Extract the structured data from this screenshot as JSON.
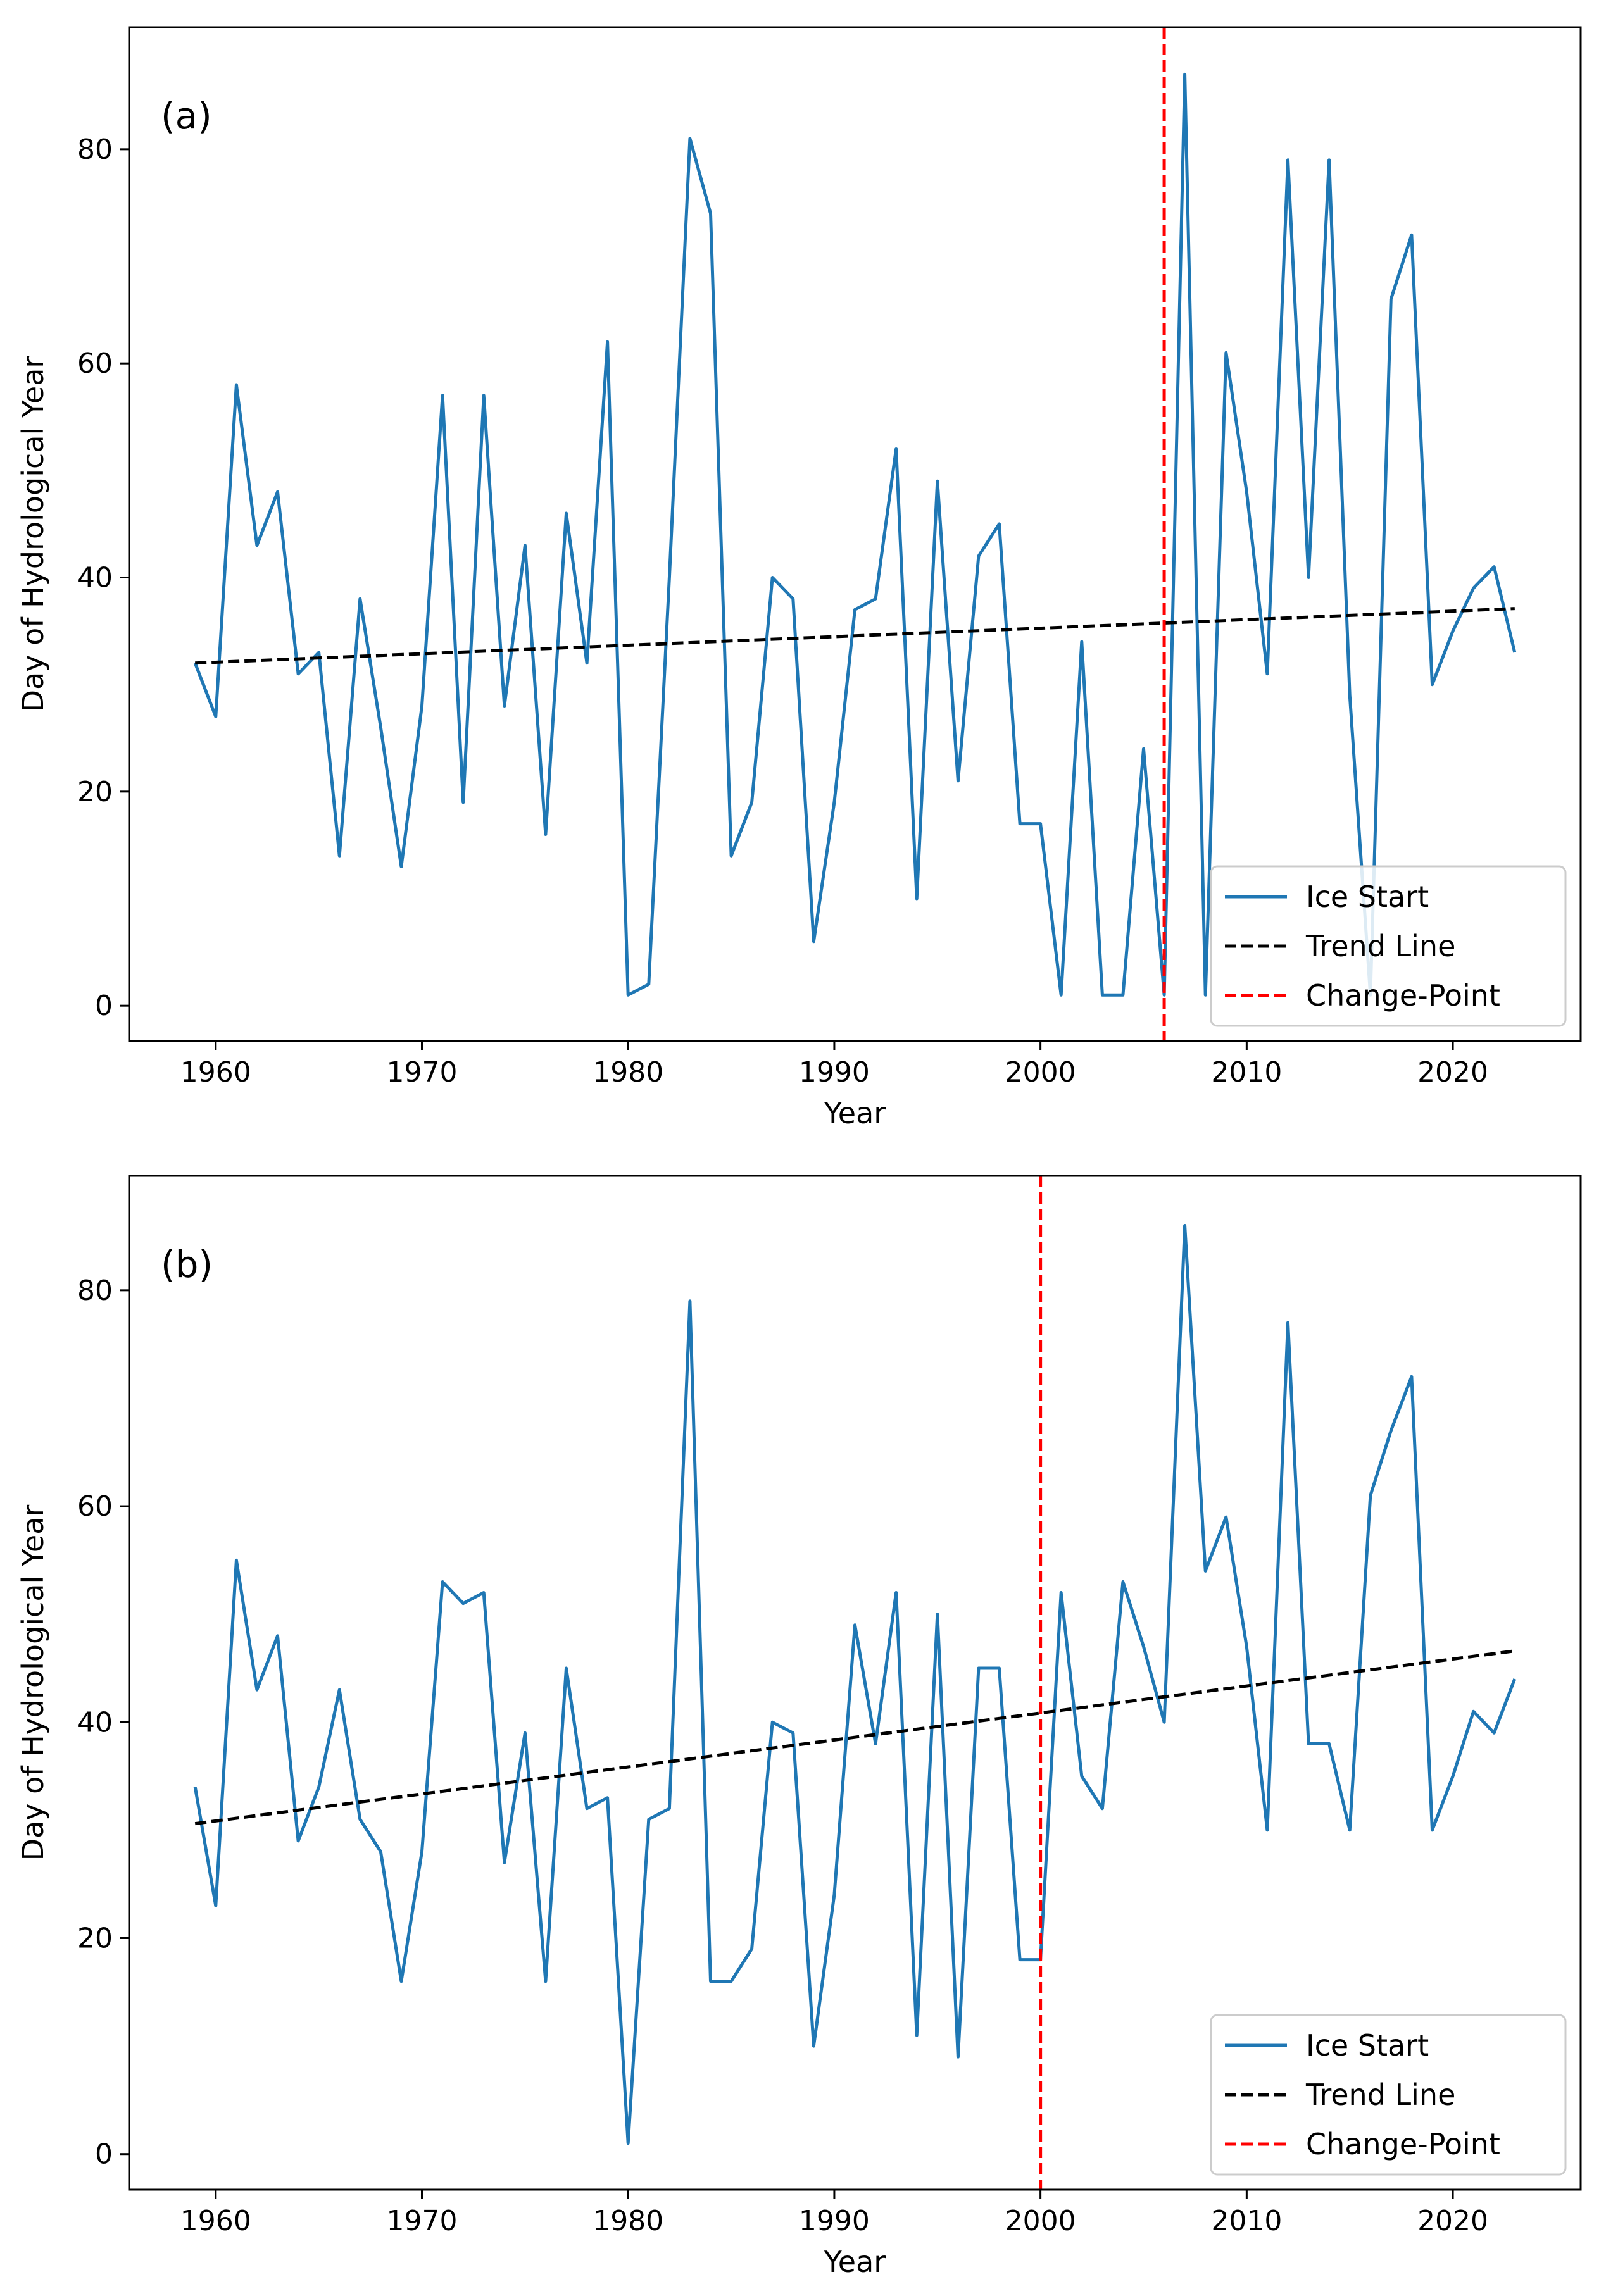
{
  "chart_data": [
    {
      "type": "line",
      "panel_label": "(a)",
      "xlabel": "Year",
      "ylabel": "Day of Hydrological Year",
      "xlim": [
        1955.8,
        2026.2
      ],
      "ylim": [
        -3.3,
        91.4
      ],
      "xticks": [
        1960,
        1970,
        1980,
        1990,
        2000,
        2010,
        2020
      ],
      "yticks": [
        0,
        20,
        40,
        60,
        80
      ],
      "x": [
        1959,
        1960,
        1961,
        1962,
        1963,
        1964,
        1965,
        1966,
        1967,
        1968,
        1969,
        1970,
        1971,
        1972,
        1973,
        1974,
        1975,
        1976,
        1977,
        1978,
        1979,
        1980,
        1981,
        1982,
        1983,
        1984,
        1985,
        1986,
        1987,
        1988,
        1989,
        1990,
        1991,
        1992,
        1993,
        1994,
        1995,
        1996,
        1997,
        1998,
        1999,
        2000,
        2001,
        2002,
        2003,
        2004,
        2005,
        2006,
        2007,
        2008,
        2009,
        2010,
        2011,
        2012,
        2013,
        2014,
        2015,
        2016,
        2017,
        2018,
        2019,
        2020,
        2021,
        2022,
        2023
      ],
      "series": [
        {
          "name": "Ice Start",
          "color": "#1f77b4",
          "style": "solid",
          "values": [
            32,
            27,
            58,
            43,
            48,
            31,
            33,
            14,
            38,
            26,
            13,
            28,
            57,
            19,
            57,
            28,
            43,
            16,
            46,
            32,
            62,
            1,
            2,
            40,
            81,
            74,
            14,
            19,
            40,
            38,
            6,
            19,
            37,
            38,
            52,
            10,
            49,
            21,
            42,
            45,
            17,
            17,
            1,
            34,
            1,
            1,
            24,
            1,
            87,
            1,
            61,
            48,
            31,
            79,
            40,
            79,
            29,
            1,
            66,
            72,
            30,
            35,
            39,
            41,
            33
          ]
        },
        {
          "name": "Trend Line",
          "color": "#000000",
          "style": "dashed",
          "x": [
            1959,
            2023
          ],
          "values": [
            32.0,
            37.1
          ]
        }
      ],
      "change_point": {
        "name": "Change-Point",
        "year": 2006,
        "color": "#ff0000",
        "style": "dashed"
      },
      "legend_position": "lower-right"
    },
    {
      "type": "line",
      "panel_label": "(b)",
      "xlabel": "Year",
      "ylabel": "Day of Hydrological Year",
      "xlim": [
        1955.8,
        2026.2
      ],
      "ylim": [
        -3.3,
        90.6
      ],
      "xticks": [
        1960,
        1970,
        1980,
        1990,
        2000,
        2010,
        2020
      ],
      "yticks": [
        0,
        20,
        40,
        60,
        80
      ],
      "x": [
        1959,
        1960,
        1961,
        1962,
        1963,
        1964,
        1965,
        1966,
        1967,
        1968,
        1969,
        1970,
        1971,
        1972,
        1973,
        1974,
        1975,
        1976,
        1977,
        1978,
        1979,
        1980,
        1981,
        1982,
        1983,
        1984,
        1985,
        1986,
        1987,
        1988,
        1989,
        1990,
        1991,
        1992,
        1993,
        1994,
        1995,
        1996,
        1997,
        1998,
        1999,
        2000,
        2001,
        2002,
        2003,
        2004,
        2005,
        2006,
        2007,
        2008,
        2009,
        2010,
        2011,
        2012,
        2013,
        2014,
        2015,
        2016,
        2017,
        2018,
        2019,
        2020,
        2021,
        2022,
        2023
      ],
      "series": [
        {
          "name": "Ice Start",
          "color": "#1f77b4",
          "style": "solid",
          "values": [
            34,
            23,
            55,
            43,
            48,
            29,
            34,
            43,
            31,
            28,
            16,
            28,
            53,
            51,
            52,
            27,
            39,
            16,
            45,
            32,
            33,
            1,
            31,
            32,
            79,
            16,
            16,
            19,
            40,
            39,
            10,
            24,
            49,
            38,
            52,
            11,
            50,
            9,
            45,
            45,
            18,
            18,
            52,
            35,
            32,
            53,
            47,
            40,
            86,
            54,
            59,
            47,
            30,
            77,
            38,
            38,
            30,
            61,
            67,
            72,
            30,
            35,
            41,
            39,
            44
          ]
        },
        {
          "name": "Trend Line",
          "color": "#000000",
          "style": "dashed",
          "x": [
            1959,
            2023
          ],
          "values": [
            30.6,
            46.6
          ]
        }
      ],
      "change_point": {
        "name": "Change-Point",
        "year": 2000,
        "color": "#ff0000",
        "style": "dashed"
      },
      "legend_position": "lower-right"
    }
  ]
}
